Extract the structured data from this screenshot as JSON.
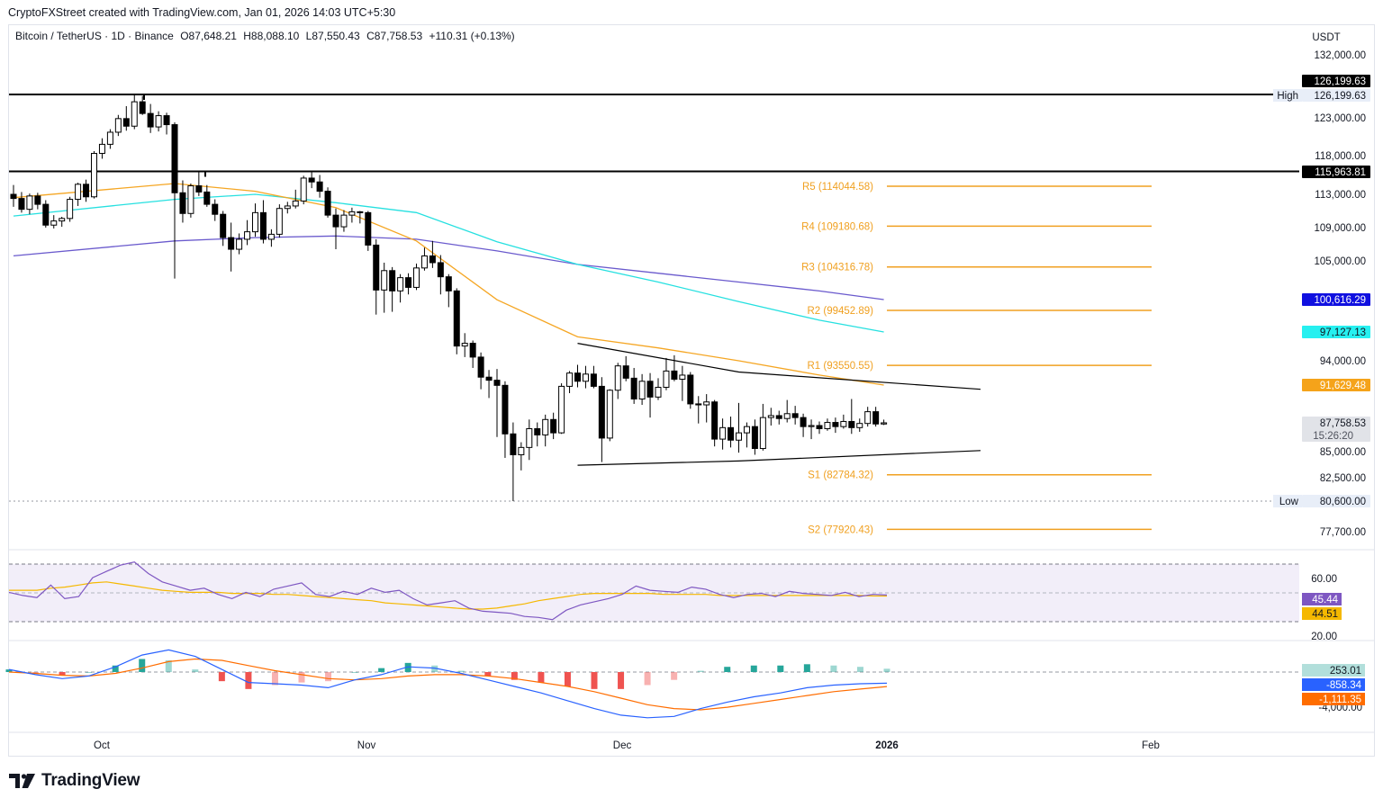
{
  "attribution": "CryptoFXStreet created with TradingView.com, Jan 01, 2026 14:03 UTC+5:30",
  "brand": "TradingView",
  "legend": {
    "symbol": "Bitcoin / TetherUS · 1D · Binance",
    "open": "O87,648.21",
    "high": "H88,088.10",
    "low": "L87,550.43",
    "close": "C87,758.53",
    "change": "+110.31 (+0.13%)"
  },
  "colors": {
    "up_candle": "#ffffff",
    "down_candle": "#000000",
    "ma_short": "#f5a623",
    "ma_mid": "#26e0e0",
    "ma_long": "#6a5acd",
    "pivot": "#f0a020",
    "rsi": "#7e57c2",
    "rsi_signal": "#f5b800",
    "macd": "#2962ff",
    "macd_signal": "#ff6d00",
    "hist_up": "#26a69a",
    "hist_down": "#ef5350"
  },
  "chart_data": {
    "type": "candlestick",
    "symbol": "Bitcoin / TetherUS",
    "timeframe": "1D",
    "exchange": "Binance",
    "currency": "USDT",
    "y_ticks": [
      "132,000.00",
      "123,000.00",
      "118,000.00",
      "113,000.00",
      "109,000.00",
      "105,000.00",
      "94,000.00",
      "85,000.00",
      "82,500.00",
      "77,700.00"
    ],
    "x_ticks": [
      {
        "label": "Oct",
        "bold": false
      },
      {
        "label": "Nov",
        "bold": false
      },
      {
        "label": "Dec",
        "bold": false
      },
      {
        "label": "2026",
        "bold": true
      },
      {
        "label": "Feb",
        "bold": false
      }
    ],
    "price_badges": [
      {
        "value": "126,199.63",
        "kind": "black"
      },
      {
        "value": "126,199.63",
        "kind": "light",
        "prefix": "High"
      },
      {
        "value": "115,963.81",
        "kind": "black"
      },
      {
        "value": "100,616.29",
        "kind": "blue"
      },
      {
        "value": "97,127.13",
        "kind": "cyan"
      },
      {
        "value": "91,629.48",
        "kind": "orange"
      },
      {
        "value": "87,758.53",
        "kind": "gray",
        "sub": "15:26:20"
      },
      {
        "value": "80,600.00",
        "kind": "light",
        "prefix": "Low"
      }
    ],
    "pivots": [
      {
        "label": "R5 (114044.58)",
        "value": 114044.58
      },
      {
        "label": "R4 (109180.68)",
        "value": 109180.68
      },
      {
        "label": "R3 (104316.78)",
        "value": 104316.78
      },
      {
        "label": "R2 (99452.89)",
        "value": 99452.89
      },
      {
        "label": "R1 (93550.55)",
        "value": 93550.55
      },
      {
        "label": "S1 (82784.32)",
        "value": 82784.32
      },
      {
        "label": "S2 (77920.43)",
        "value": 77920.43
      }
    ],
    "horizontal_lines": [
      126199.63,
      115963.81
    ],
    "low_line": 80600.0,
    "candles": [
      [
        113000,
        114200,
        111500,
        112500
      ],
      [
        112500,
        113300,
        110800,
        111200
      ],
      [
        111200,
        113100,
        110600,
        112800
      ],
      [
        112800,
        113200,
        111200,
        111800
      ],
      [
        111800,
        112300,
        109000,
        109300
      ],
      [
        109300,
        110500,
        108900,
        109800
      ],
      [
        109800,
        110300,
        109100,
        110100
      ],
      [
        110100,
        112700,
        109700,
        112400
      ],
      [
        112400,
        114500,
        111600,
        114300
      ],
      [
        114300,
        114900,
        112100,
        112700
      ],
      [
        112700,
        118600,
        112500,
        118300
      ],
      [
        118300,
        120300,
        117600,
        119500
      ],
      [
        119500,
        121500,
        118900,
        121100
      ],
      [
        121100,
        123400,
        120600,
        122900
      ],
      [
        122900,
        124600,
        121300,
        121900
      ],
      [
        121900,
        126199.63,
        121500,
        125200
      ],
      [
        125200,
        126000,
        123400,
        123600
      ],
      [
        123600,
        124900,
        121000,
        121800
      ],
      [
        121800,
        123900,
        121200,
        123300
      ],
      [
        123300,
        123700,
        120800,
        122100
      ],
      [
        122100,
        122400,
        103000,
        113200
      ],
      [
        113200,
        114800,
        109600,
        110700
      ],
      [
        110700,
        114400,
        110200,
        114100
      ],
      [
        114100,
        115963.81,
        112800,
        113300
      ],
      [
        113300,
        114200,
        111500,
        111800
      ],
      [
        111800,
        112400,
        109800,
        110600
      ],
      [
        110600,
        111000,
        106800,
        107800
      ],
      [
        107800,
        109600,
        103800,
        106400
      ],
      [
        106400,
        108300,
        105800,
        107600
      ],
      [
        107600,
        109900,
        106900,
        108500
      ],
      [
        108500,
        111900,
        107900,
        110800
      ],
      [
        110800,
        112300,
        107100,
        107600
      ],
      [
        107600,
        108800,
        106700,
        108200
      ],
      [
        108200,
        111800,
        107800,
        111300
      ],
      [
        111300,
        112100,
        110700,
        111600
      ],
      [
        111600,
        113600,
        111300,
        112200
      ],
      [
        112200,
        115400,
        111800,
        115100
      ],
      [
        115100,
        116000,
        113800,
        114600
      ],
      [
        114600,
        115500,
        112600,
        113400
      ],
      [
        113400,
        113900,
        110200,
        110500
      ],
      [
        110500,
        111300,
        106400,
        109100
      ],
      [
        109100,
        111100,
        108500,
        110500
      ],
      [
        110500,
        111400,
        109600,
        110900
      ],
      [
        110900,
        111000,
        109500,
        110800
      ],
      [
        110800,
        111000,
        106200,
        106900
      ],
      [
        106900,
        107600,
        99000,
        101700
      ],
      [
        101700,
        104800,
        99200,
        103900
      ],
      [
        103900,
        104300,
        99300,
        101600
      ],
      [
        101600,
        103500,
        100300,
        103100
      ],
      [
        103100,
        103600,
        101200,
        102000
      ],
      [
        102000,
        104700,
        101700,
        104200
      ],
      [
        104200,
        106600,
        103900,
        105600
      ],
      [
        105600,
        107400,
        104200,
        104800
      ],
      [
        104800,
        105700,
        101200,
        103200
      ],
      [
        103200,
        103500,
        99800,
        101600
      ],
      [
        101600,
        101900,
        94700,
        95600
      ],
      [
        95600,
        97000,
        94400,
        95900
      ],
      [
        95900,
        96200,
        93300,
        94400
      ],
      [
        94400,
        94900,
        91200,
        92400
      ],
      [
        92400,
        93100,
        90300,
        92100
      ],
      [
        92100,
        93200,
        86400,
        91600
      ],
      [
        91600,
        92000,
        84400,
        86700
      ],
      [
        86700,
        87800,
        80600,
        84700
      ],
      [
        84700,
        85900,
        83200,
        85400
      ],
      [
        85400,
        88100,
        84200,
        87200
      ],
      [
        87200,
        87800,
        85500,
        86600
      ],
      [
        86600,
        88600,
        85500,
        88100
      ],
      [
        88100,
        88800,
        86200,
        86800
      ],
      [
        86800,
        91800,
        86700,
        91500
      ],
      [
        91500,
        93000,
        90800,
        92800
      ],
      [
        92800,
        93600,
        91400,
        92000
      ],
      [
        92000,
        93500,
        91300,
        92700
      ],
      [
        92700,
        93500,
        91300,
        91500
      ],
      [
        91500,
        92400,
        84000,
        86300
      ],
      [
        86300,
        91200,
        86000,
        91100
      ],
      [
        91100,
        93800,
        90200,
        93500
      ],
      [
        93500,
        94500,
        92000,
        92300
      ],
      [
        92300,
        93300,
        89700,
        90200
      ],
      [
        90200,
        92700,
        89600,
        92000
      ],
      [
        92000,
        92800,
        88300,
        90400
      ],
      [
        90400,
        92300,
        90100,
        91400
      ],
      [
        91400,
        94300,
        91100,
        93000
      ],
      [
        93000,
        94600,
        92000,
        92200
      ],
      [
        92200,
        93500,
        90000,
        92600
      ],
      [
        92600,
        92900,
        89200,
        89700
      ],
      [
        89700,
        90500,
        87700,
        89600
      ],
      [
        89600,
        90700,
        87800,
        89900
      ],
      [
        89900,
        90100,
        85500,
        86200
      ],
      [
        86200,
        88200,
        85200,
        87300
      ],
      [
        87300,
        88400,
        85400,
        86100
      ],
      [
        86100,
        89800,
        84900,
        86800
      ],
      [
        86800,
        87800,
        85400,
        87400
      ],
      [
        87400,
        88100,
        84700,
        85300
      ],
      [
        85300,
        89700,
        85100,
        88300
      ],
      [
        88300,
        89300,
        87500,
        88500
      ],
      [
        88500,
        89000,
        87600,
        88200
      ],
      [
        88200,
        90100,
        87800,
        88700
      ],
      [
        88700,
        89500,
        87600,
        88300
      ],
      [
        88300,
        88700,
        86400,
        87400
      ],
      [
        87400,
        88100,
        86200,
        87500
      ],
      [
        87500,
        87900,
        86700,
        87200
      ],
      [
        87200,
        88200,
        87000,
        87800
      ],
      [
        87800,
        88300,
        86800,
        87400
      ],
      [
        87400,
        88600,
        87200,
        87900
      ],
      [
        87900,
        90200,
        86700,
        87300
      ],
      [
        87300,
        88200,
        86900,
        87700
      ],
      [
        87700,
        89400,
        87400,
        88900
      ],
      [
        88900,
        89400,
        87400,
        87650
      ],
      [
        87648.21,
        88088.1,
        87550.43,
        87758.53
      ]
    ],
    "ma_short": [
      [
        0,
        112600
      ],
      [
        20,
        114400
      ],
      [
        30,
        113400
      ],
      [
        40,
        111400
      ],
      [
        50,
        107400
      ],
      [
        60,
        100600
      ],
      [
        70,
        96600
      ],
      [
        80,
        95400
      ],
      [
        90,
        94000
      ],
      [
        100,
        92600
      ],
      [
        108,
        91629.48
      ]
    ],
    "ma_mid": [
      [
        0,
        110400
      ],
      [
        20,
        112400
      ],
      [
        30,
        113000
      ],
      [
        40,
        112000
      ],
      [
        50,
        110800
      ],
      [
        60,
        107300
      ],
      [
        70,
        104600
      ],
      [
        80,
        102600
      ],
      [
        90,
        100400
      ],
      [
        100,
        98400
      ],
      [
        108,
        97127.13
      ]
    ],
    "ma_long": [
      [
        0,
        105600
      ],
      [
        20,
        107400
      ],
      [
        30,
        107800
      ],
      [
        40,
        108000
      ],
      [
        50,
        107600
      ],
      [
        60,
        106200
      ],
      [
        70,
        104600
      ],
      [
        80,
        103600
      ],
      [
        90,
        102600
      ],
      [
        100,
        101600
      ],
      [
        108,
        100616.29
      ]
    ],
    "triangle_upper": [
      [
        70,
        95900
      ],
      [
        90,
        92900
      ],
      [
        120,
        91200
      ]
    ],
    "triangle_lower": [
      [
        70,
        83700
      ],
      [
        90,
        84100
      ],
      [
        120,
        85100
      ]
    ],
    "rsi": {
      "label_value": "45.44",
      "signal_value": "44.51",
      "ticks": [
        "60.00",
        "20.00"
      ],
      "series": [
        48,
        45,
        43,
        55,
        42,
        44,
        62,
        68,
        74,
        77,
        66,
        58,
        54,
        50,
        52,
        46,
        42,
        48,
        44,
        51,
        54,
        57,
        46,
        44,
        49,
        46,
        52,
        48,
        50,
        42,
        36,
        38,
        40,
        33,
        30,
        29,
        28,
        25,
        24,
        22,
        31,
        36,
        39,
        42,
        46,
        54,
        50,
        49,
        48,
        53,
        51,
        46,
        43,
        46,
        47,
        44,
        49,
        47,
        46,
        45,
        48,
        44,
        46,
        45.44
      ],
      "signal": [
        50,
        50,
        50,
        52,
        53,
        55,
        57,
        58,
        56,
        54,
        52,
        50,
        49,
        48,
        48,
        48,
        47,
        47,
        47,
        46,
        46,
        45,
        44,
        43,
        42,
        41,
        40,
        38,
        37,
        36,
        35,
        34,
        33,
        32,
        32,
        33,
        35,
        37,
        40,
        42,
        44,
        46,
        47,
        47,
        47,
        47,
        47,
        46,
        46,
        46,
        46,
        45,
        45,
        45,
        45,
        45,
        45,
        45,
        45,
        45,
        45,
        45,
        44.6,
        44.51
      ]
    },
    "macd": {
      "hist_value": "253.01",
      "macd_value": "-858.34",
      "signal_value": "-1,111.35",
      "ticks": [
        "-4,000.00"
      ],
      "macd": [
        200,
        -200,
        -500,
        -300,
        400,
        1300,
        1700,
        1200,
        200,
        -800,
        -900,
        -1000,
        -1200,
        -600,
        -200,
        400,
        300,
        -100,
        -600,
        -1100,
        -1600,
        -2200,
        -2800,
        -3300,
        -3500,
        -3400,
        -2800,
        -2300,
        -1900,
        -1600,
        -1200,
        -1000,
        -900,
        -858.34
      ],
      "signal": [
        0,
        -100,
        -250,
        -300,
        -100,
        300,
        800,
        1000,
        900,
        500,
        100,
        -200,
        -500,
        -600,
        -500,
        -300,
        -200,
        -200,
        -300,
        -500,
        -800,
        -1100,
        -1500,
        -2000,
        -2500,
        -2800,
        -2900,
        -2700,
        -2400,
        -2100,
        -1800,
        -1500,
        -1300,
        -1111.35
      ]
    }
  }
}
